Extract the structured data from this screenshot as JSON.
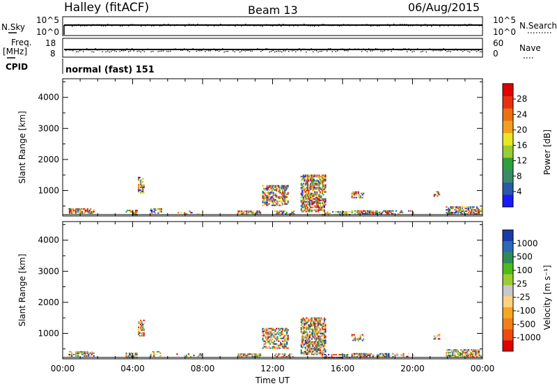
{
  "header": {
    "station": "Halley (fitACF)",
    "beam": "Beam 13",
    "date": "06/Aug/2015"
  },
  "top_panels": {
    "noise": {
      "left_label": "N.Sky",
      "right_label": "N.Search",
      "left_ticks": [
        "10^5",
        "10^0"
      ],
      "right_ticks": [
        "10^5",
        "10^0"
      ]
    },
    "freq": {
      "left_label": "Freq.",
      "left_unit": "[MHz]",
      "right_label": "Nave",
      "left_ticks": [
        "18",
        "8"
      ],
      "right_ticks": [
        "60",
        "0"
      ]
    },
    "cpid": {
      "label": "CPID",
      "value": "normal (fast) 151"
    }
  },
  "chart_data": [
    {
      "type": "heatmap",
      "title": "",
      "xlabel": "",
      "ylabel": "Slant Range [km]",
      "colorbar_label": "Power [dB]",
      "colorbar_ticks": [
        "4",
        "8",
        "12",
        "16",
        "20",
        "24",
        "28"
      ],
      "colorbar_colors": [
        "#1a1aff",
        "#2a5aa8",
        "#3a8a6a",
        "#2e9e3e",
        "#9acd32",
        "#e8e820",
        "#f2a020",
        "#ee7010",
        "#e83010",
        "#e00000"
      ],
      "x_ticks": [
        "00:00",
        "04:00",
        "08:00",
        "12:00",
        "16:00",
        "20:00",
        "00:00"
      ],
      "y_ticks": [
        "1000",
        "2000",
        "3000",
        "4000"
      ],
      "xlim": [
        0,
        24
      ],
      "ylim": [
        180,
        4600
      ]
    },
    {
      "type": "heatmap",
      "title": "",
      "xlabel": "Time UT",
      "ylabel": "Slant Range [km]",
      "colorbar_label": "Velocity [m s⁻¹]",
      "colorbar_ticks": [
        "-1000",
        "-500",
        "-100",
        "-25",
        "25",
        "100",
        "500",
        "1000"
      ],
      "colorbar_colors": [
        "#e00000",
        "#f04a10",
        "#f2801a",
        "#f5a623",
        "#ffd27f",
        "#c8c8c8",
        "#9acd32",
        "#4cbb17",
        "#2e8b57",
        "#2a6ab8",
        "#1a3aa8"
      ],
      "x_ticks": [
        "00:00",
        "04:00",
        "08:00",
        "12:00",
        "16:00",
        "20:00",
        "00:00"
      ],
      "y_ticks": [
        "1000",
        "2000",
        "3000",
        "4000"
      ],
      "xlim": [
        0,
        24
      ],
      "ylim": [
        180,
        4600
      ]
    }
  ]
}
